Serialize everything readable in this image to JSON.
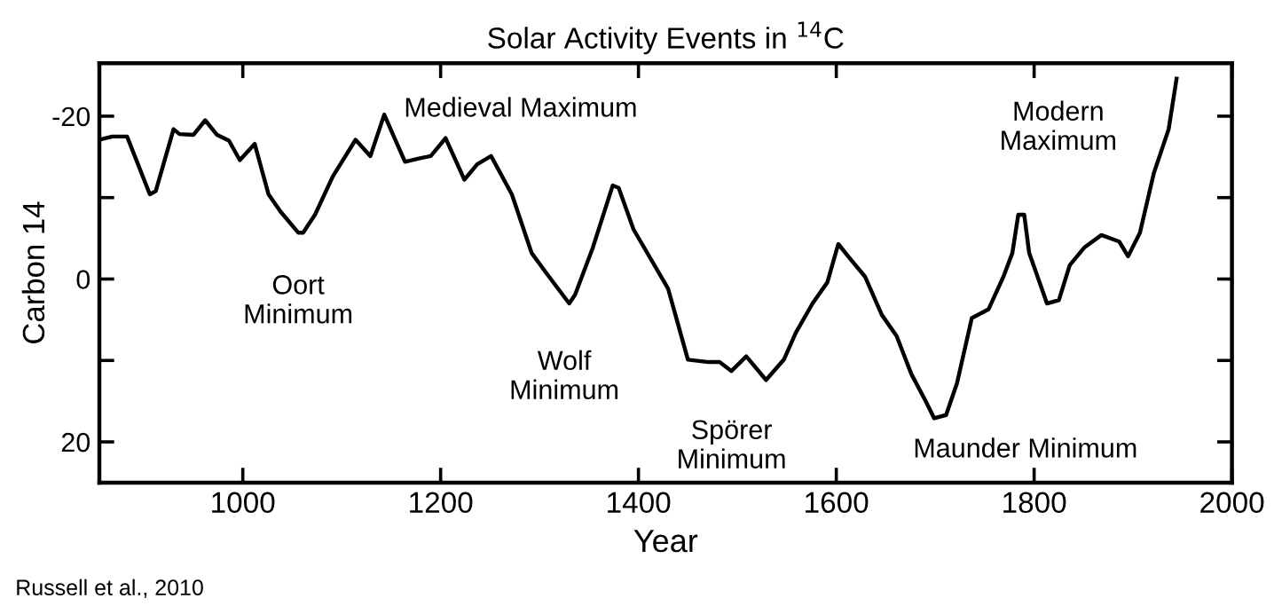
{
  "chart_data": {
    "type": "line",
    "title": "Solar Activity Events in $^{14}$C",
    "xlabel": "Year",
    "ylabel": "Carbon 14",
    "xlim": [
      855,
      2000
    ],
    "ylim": [
      25,
      -26.5
    ],
    "xticks": [
      1000,
      1200,
      1400,
      1600,
      1800,
      2000
    ],
    "yticks": [
      -20,
      {
        "value": -10,
        "label": null
      },
      0,
      {
        "value": 10,
        "label": null
      },
      20
    ],
    "grid": false,
    "legend": false,
    "marker": "none",
    "line_style": "solid",
    "series": [
      {
        "color": "#000000",
        "x": [
          855,
          868,
          883,
          906,
          912,
          930,
          936,
          950,
          962,
          974,
          986,
          997,
          1012,
          1026,
          1038,
          1056,
          1061,
          1073,
          1091,
          1114,
          1129,
          1143,
          1152,
          1164,
          1178,
          1190,
          1205,
          1224,
          1237,
          1251,
          1272,
          1292,
          1307,
          1330,
          1336,
          1354,
          1374,
          1380,
          1395,
          1430,
          1450,
          1471,
          1482,
          1494,
          1509,
          1529,
          1547,
          1559,
          1576,
          1591,
          1602,
          1614,
          1629,
          1646,
          1661,
          1676,
          1690,
          1699,
          1711,
          1722,
          1737,
          1754,
          1769,
          1778,
          1784,
          1790,
          1795,
          1813,
          1825,
          1836,
          1851,
          1868,
          1886,
          1895,
          1907,
          1921,
          1936,
          1944
        ],
        "values": [
          -17.1,
          -17.5,
          -17.5,
          -10.4,
          -10.8,
          -18.4,
          -17.8,
          -17.7,
          -19.5,
          -17.7,
          -17,
          -14.6,
          -16.6,
          -10.4,
          -8.3,
          -5.7,
          -5.7,
          -7.9,
          -12.6,
          -17.1,
          -15.1,
          -20.2,
          -17.7,
          -14.4,
          -14.8,
          -15.1,
          -17.3,
          -12.2,
          -14.1,
          -15.1,
          -10.4,
          -3.2,
          -0.7,
          3,
          1.9,
          -3.9,
          -11.5,
          -11.2,
          -6.1,
          1.2,
          9.9,
          10.2,
          10.2,
          11.3,
          9.5,
          12.4,
          9.9,
          6.6,
          3,
          0.4,
          -4.3,
          -2.5,
          -0.3,
          4.4,
          7,
          11.7,
          14.9,
          17.1,
          16.7,
          12.8,
          4.8,
          3.7,
          -0.3,
          -3.2,
          -7.9,
          -7.9,
          -3.2,
          3,
          2.6,
          -1.7,
          -3.9,
          -5.4,
          -4.6,
          -2.8,
          -5.7,
          -13,
          -18.4,
          -24.6
        ]
      }
    ],
    "annotations": [
      {
        "text": "Oort\nMinimum",
        "x": 1056,
        "y": -5.7
      },
      {
        "text": "Medieval Maximum",
        "x": 1143,
        "y": -20.2
      },
      {
        "text": "Wolf\nMinimum",
        "x": 1330,
        "y": 3
      },
      {
        "text": "Spörer\nMinimum",
        "x": 1529,
        "y": 12.4
      },
      {
        "text": "Maunder Minimum",
        "x": 1699,
        "y": 17.1
      },
      {
        "text": "Modern\nMaximum",
        "x": 1944,
        "y": -24.6
      },
      "Russell et al., 2010"
    ]
  }
}
